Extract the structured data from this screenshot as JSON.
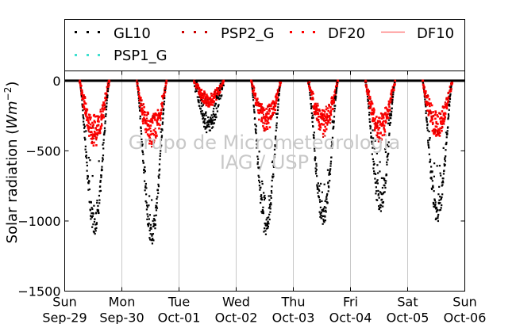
{
  "chart_data": {
    "type": "scatter",
    "ylabel": "Solar radiation ($Wm^{-2}$)",
    "ylabel_display": {
      "main": "Solar radiation (",
      "var": "Wm",
      "sup": "−2",
      "close": ")"
    },
    "ylim": [
      -1500,
      70
    ],
    "yticks": [
      0,
      -500,
      -1000,
      -1500
    ],
    "ytick_labels": [
      "0",
      "−500",
      "−1000",
      "−1500"
    ],
    "xlim": [
      "2019-09-29",
      "2019-10-06"
    ],
    "xticks": [
      {
        "day": "Sun",
        "date": "Sep-29"
      },
      {
        "day": "Mon",
        "date": "Sep-30"
      },
      {
        "day": "Tue",
        "date": "Oct-01"
      },
      {
        "day": "Wed",
        "date": "Oct-02"
      },
      {
        "day": "Thu",
        "date": "Oct-03"
      },
      {
        "day": "Fri",
        "date": "Oct-04"
      },
      {
        "day": "Sat",
        "date": "Oct-05"
      },
      {
        "day": "Sun",
        "date": "Oct-06"
      }
    ],
    "grid": "vertical",
    "legend": {
      "placement": "top",
      "columns": 4
    },
    "watermark": [
      "Grupo de Micrometeorologia",
      "IAG / USP"
    ],
    "series": [
      {
        "name": "GL10",
        "marker": "dots",
        "color": "#000000",
        "daily_min": [
          -1020,
          -1090,
          -310,
          -1040,
          -960,
          -870,
          -940
        ]
      },
      {
        "name": "PSP2_G",
        "marker": "dots",
        "color": "#cc0000"
      },
      {
        "name": "DF20",
        "marker": "dots",
        "color": "#ff0000",
        "daily_min": [
          -460,
          -470,
          -180,
          -350,
          -380,
          -420,
          -410
        ]
      },
      {
        "name": "DF10",
        "marker": "line",
        "color": "#ff6666"
      },
      {
        "name": "PSP1_G",
        "marker": "dots",
        "color": "#40e0d0"
      }
    ]
  }
}
